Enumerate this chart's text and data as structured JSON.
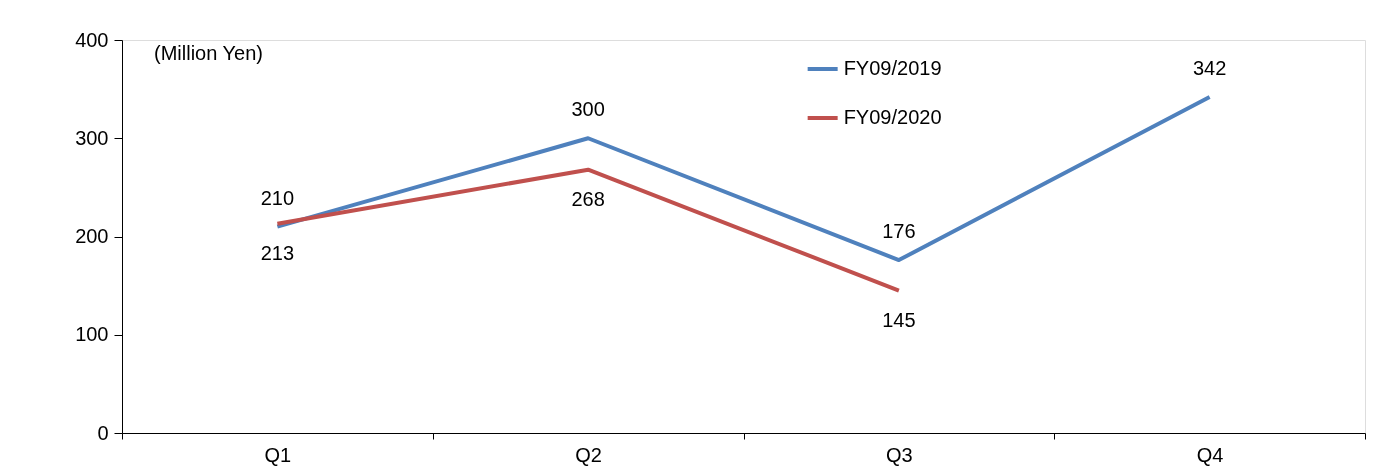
{
  "chart_data": {
    "type": "line",
    "ylabel": "(Million Yen)",
    "categories": [
      "Q1",
      "Q2",
      "Q3",
      "Q4"
    ],
    "series": [
      {
        "name": "FY09/2019",
        "color": "#4f81bd",
        "values": [
          210,
          300,
          176,
          342
        ]
      },
      {
        "name": "FY09/2020",
        "color": "#c0504d",
        "values": [
          213,
          268,
          145,
          null
        ]
      }
    ],
    "ylim": [
      0,
      400
    ],
    "yticks": [
      0,
      100,
      200,
      300,
      400
    ],
    "grid": false,
    "legend": "top right",
    "data_labels": true,
    "marker": "none",
    "line_style": "solid"
  }
}
